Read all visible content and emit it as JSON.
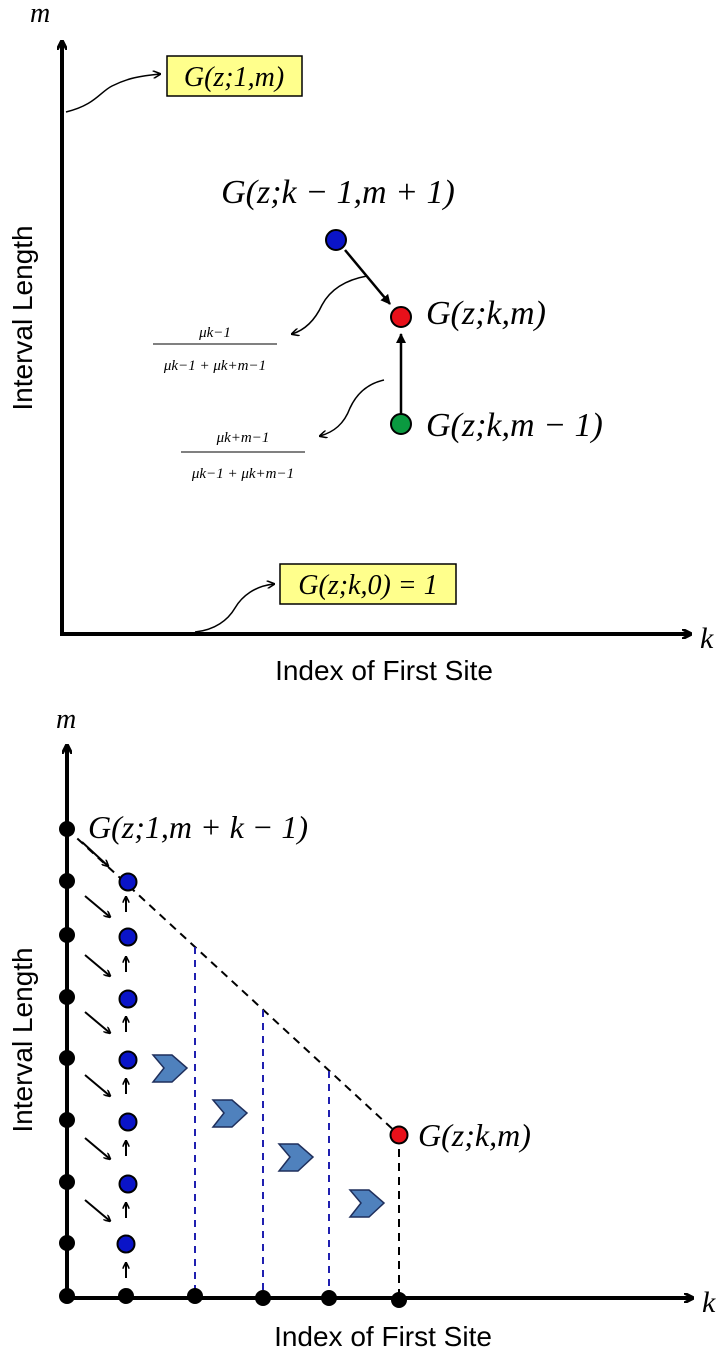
{
  "top_panel": {
    "y_axis_var": "m",
    "x_axis_var": "k",
    "y_axis_title": "Interval  Length",
    "x_axis_title": "Index of First Site",
    "boundary_top_label": "G(z;1,m)",
    "boundary_bottom_label": "G(z;k,0) = 1",
    "node_upper_label": "G(z;k − 1,m + 1)",
    "node_target_label": "G(z;k,m)",
    "node_lower_label": "G(z;k,m − 1)",
    "weight_diag_num": "μk−1",
    "weight_diag_den": "μk−1 + μk+m−1",
    "weight_vert_num": "μk+m−1",
    "weight_vert_den": "μk−1 + μk+m−1"
  },
  "bottom_panel": {
    "y_axis_var": "m",
    "x_axis_var": "k",
    "y_axis_title": "Interval  Length",
    "x_axis_title": "Index of First Site",
    "corner_label": "G(z;1,m + k − 1)",
    "target_label": "G(z;k,m)"
  },
  "colors": {
    "node_upper": "#0a14c8",
    "node_target": "#e8101a",
    "node_lower": "#0a9a40",
    "label_box_fill": "#ffff8c",
    "block_arrow": "#4f81bd",
    "dashed_blue": "#2020b0"
  }
}
